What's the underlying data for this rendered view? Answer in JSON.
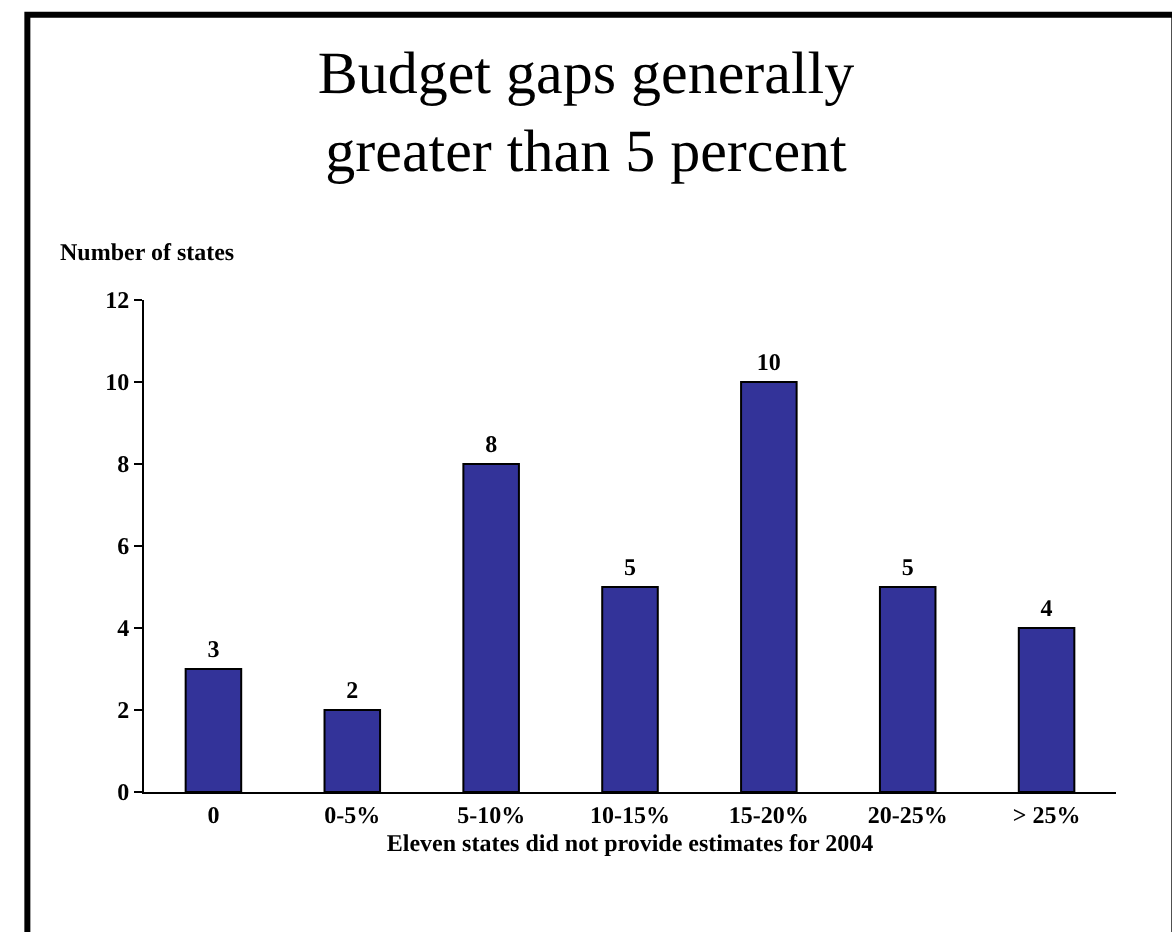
{
  "chart_data": {
    "type": "bar",
    "title": "Budget gaps generally\ngreater than 5 percent",
    "ylabel": "Number of states",
    "xlabel": "Eleven states did not provide estimates for 2004",
    "categories": [
      "0",
      "0-5%",
      "5-10%",
      "10-15%",
      "15-20%",
      "20-25%",
      "> 25%"
    ],
    "values": [
      3,
      2,
      8,
      5,
      10,
      5,
      4
    ],
    "color": "#333399",
    "ylim": [
      0,
      12
    ],
    "yticks": [
      0,
      2,
      4,
      6,
      8,
      10,
      12
    ],
    "data_labels": true
  }
}
